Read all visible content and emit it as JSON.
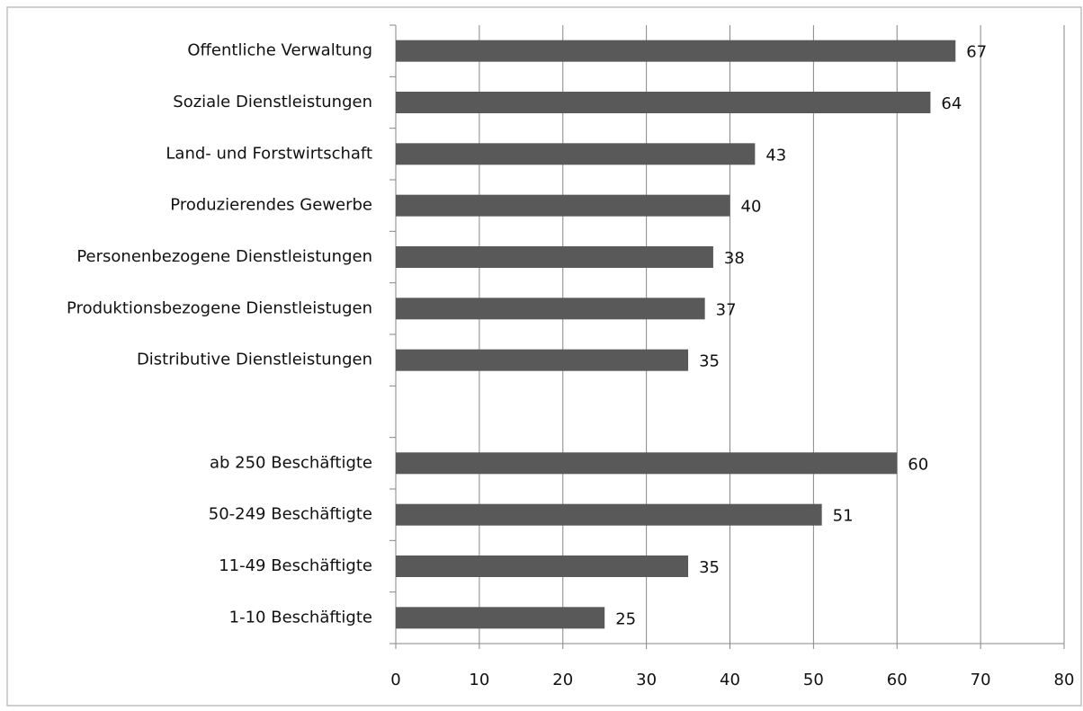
{
  "chart_data": {
    "type": "bar",
    "orientation": "horizontal",
    "categories": [
      "Offentliche Verwaltung",
      "Soziale Dienstleistungen",
      "Land- und Forstwirtschaft",
      "Produzierendes Gewerbe",
      "Personenbezogene Dienstleistungen",
      "Produktionsbezogene Dienstleistugen",
      "Distributive Dienstleistungen",
      null,
      "ab 250 Beschäftigte",
      "50-249 Beschäftigte",
      "11-49 Beschäftigte",
      "1-10 Beschäftigte"
    ],
    "values": [
      67,
      64,
      43,
      40,
      38,
      37,
      35,
      null,
      60,
      51,
      35,
      25
    ],
    "color": "#595959",
    "xlim": [
      0,
      80
    ],
    "xticks": [
      0,
      10,
      20,
      30,
      40,
      50,
      60,
      70,
      80
    ],
    "grid": true
  }
}
